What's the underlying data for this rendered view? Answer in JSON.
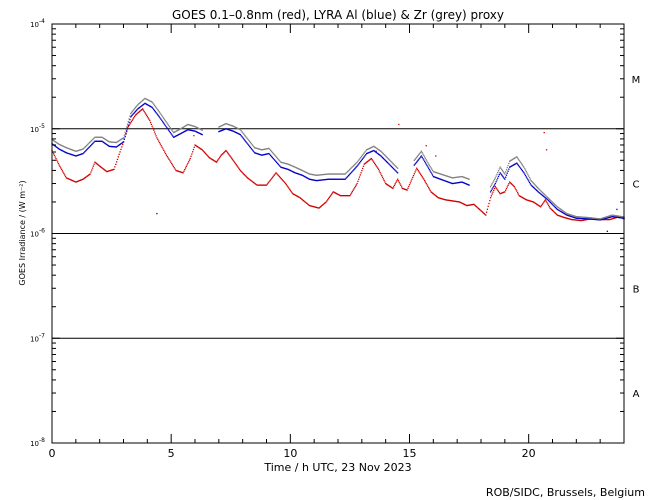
{
  "chart_data": {
    "type": "scatter",
    "title": "GOES 0.1–0.8nm (red), LYRA Al (blue) & Zr (grey) proxy",
    "xlabel": "Time / h UTC, 23 Nov 2023",
    "ylabel": "GOES Irradiance / (W m⁻²)",
    "xlim": [
      0,
      24
    ],
    "ylim": [
      1e-08,
      0.0001
    ],
    "yscale": "log",
    "x_ticks": [
      0,
      5,
      10,
      15,
      20
    ],
    "x_tick_labels": [
      "0",
      "5",
      "10",
      "15",
      "20"
    ],
    "y_ticks": [
      {
        "value": 1e-08,
        "base": "10",
        "exp": "-8"
      },
      {
        "value": 1e-07,
        "base": "10",
        "exp": "-7"
      },
      {
        "value": 1e-06,
        "base": "10",
        "exp": "-6"
      },
      {
        "value": 1e-05,
        "base": "10",
        "exp": "-5"
      },
      {
        "value": 0.0001,
        "base": "10",
        "exp": "-4"
      }
    ],
    "class_lines": [
      1e-07,
      1e-06,
      1e-05
    ],
    "class_labels": [
      {
        "label": "A",
        "value": 3e-08
      },
      {
        "label": "B",
        "value": 3e-07
      },
      {
        "label": "C",
        "value": 3e-06
      },
      {
        "label": "M",
        "value": 3e-05
      }
    ],
    "grid": false,
    "legend": "none",
    "series": [
      {
        "color": "#d00000",
        "x": [
          0.0,
          0.3,
          0.6,
          1.0,
          1.3,
          1.6,
          1.8,
          2.0,
          2.3,
          2.6,
          3.0,
          3.2,
          3.5,
          3.8,
          4.1,
          4.4,
          4.8,
          5.2,
          5.5,
          5.8,
          6.0,
          6.3,
          6.6,
          6.9,
          7.1,
          7.3,
          7.6,
          7.9,
          8.2,
          8.6,
          9.0,
          9.4,
          9.8,
          10.1,
          10.4,
          10.8,
          11.2,
          11.5,
          11.8,
          12.1,
          12.5,
          12.8,
          13.1,
          13.4,
          13.7,
          14.0,
          14.3,
          14.5,
          14.7,
          14.9,
          15.1,
          15.3,
          15.6,
          15.9,
          16.2,
          16.5,
          16.8,
          17.1,
          17.4,
          17.7,
          18.0,
          18.2,
          18.4,
          18.6,
          18.8,
          19.0,
          19.2,
          19.4,
          19.6,
          19.9,
          20.2,
          20.5,
          20.7,
          20.9,
          21.2,
          21.5,
          21.8,
          22.2,
          22.6,
          23.0,
          23.4,
          23.8,
          24.0
        ],
        "y": [
          6.2e-06,
          4.5e-06,
          3.4e-06,
          3.1e-06,
          3.3e-06,
          3.7e-06,
          4.8e-06,
          4.4e-06,
          3.9e-06,
          4.1e-06,
          7.5e-06,
          1.05e-05,
          1.35e-05,
          1.55e-05,
          1.2e-05,
          8.2e-06,
          5.6e-06,
          4e-06,
          3.8e-06,
          5.2e-06,
          7e-06,
          6.3e-06,
          5.3e-06,
          4.8e-06,
          5.6e-06,
          6.2e-06,
          5e-06,
          4e-06,
          3.4e-06,
          2.9e-06,
          2.9e-06,
          3.8e-06,
          3e-06,
          2.4e-06,
          2.2e-06,
          1.85e-06,
          1.75e-06,
          2e-06,
          2.5e-06,
          2.3e-06,
          2.3e-06,
          3e-06,
          4.6e-06,
          5.2e-06,
          4.1e-06,
          3e-06,
          2.7e-06,
          3.3e-06,
          2.7e-06,
          2.6e-06,
          3.3e-06,
          4.2e-06,
          3.3e-06,
          2.5e-06,
          2.2e-06,
          2.1e-06,
          2.05e-06,
          2e-06,
          1.85e-06,
          1.9e-06,
          1.65e-06,
          1.5e-06,
          2.2e-06,
          2.8e-06,
          2.4e-06,
          2.5e-06,
          3.1e-06,
          2.8e-06,
          2.3e-06,
          2.1e-06,
          2e-06,
          1.8e-06,
          2.1e-06,
          1.75e-06,
          1.5e-06,
          1.42e-06,
          1.36e-06,
          1.33e-06,
          1.38e-06,
          1.36e-06,
          1.36e-06,
          1.45e-06,
          1.38e-06
        ],
        "extra_points": [
          [
            14.55,
            1.1e-05
          ],
          [
            20.65,
            9.2e-06
          ],
          [
            20.75,
            6.3e-06
          ],
          [
            15.7,
            6.9e-06
          ],
          [
            16.1,
            5.5e-06
          ],
          [
            5.95,
            8.6e-06
          ],
          [
            13.6,
            6.1e-06
          ]
        ]
      },
      {
        "color": "#0000c8",
        "x": [
          0.0,
          0.3,
          0.6,
          1.0,
          1.3,
          1.8,
          2.1,
          2.4,
          2.7,
          3.0,
          3.3,
          3.6,
          3.9,
          4.2,
          4.5,
          5.1,
          5.4,
          5.7,
          6.0,
          6.3,
          7.0,
          7.3,
          7.6,
          7.9,
          8.5,
          8.8,
          9.1,
          9.6,
          9.9,
          10.2,
          10.5,
          10.8,
          11.1,
          11.6,
          11.9,
          12.3,
          12.8,
          13.2,
          13.5,
          13.8,
          14.1,
          14.5,
          15.2,
          15.5,
          15.8,
          16.0,
          16.3,
          16.8,
          17.2,
          17.5,
          18.4,
          18.6,
          18.8,
          19.0,
          19.2,
          19.5,
          19.8,
          20.1,
          20.4,
          20.8,
          21.2,
          21.6,
          22.0,
          22.5,
          23.0,
          23.5,
          24.0
        ],
        "y": [
          7.2e-06,
          6.4e-06,
          5.9e-06,
          5.5e-06,
          5.8e-06,
          7.6e-06,
          7.6e-06,
          6.8e-06,
          6.7e-06,
          7.5e-06,
          1.3e-05,
          1.55e-05,
          1.75e-05,
          1.6e-05,
          1.3e-05,
          8.3e-06,
          9e-06,
          9.8e-06,
          9.5e-06,
          8.8e-06,
          9.4e-06,
          1e-05,
          9.5e-06,
          8.8e-06,
          5.9e-06,
          5.6e-06,
          5.8e-06,
          4.3e-06,
          4.1e-06,
          3.8e-06,
          3.6e-06,
          3.3e-06,
          3.2e-06,
          3.3e-06,
          3.3e-06,
          3.3e-06,
          4.4e-06,
          5.8e-06,
          6.2e-06,
          5.5e-06,
          4.7e-06,
          3.8e-06,
          4.5e-06,
          5.5e-06,
          4.2e-06,
          3.5e-06,
          3.3e-06,
          3e-06,
          3.1e-06,
          2.9e-06,
          2.5e-06,
          3e-06,
          3.8e-06,
          3.3e-06,
          4.3e-06,
          4.7e-06,
          3.8e-06,
          2.9e-06,
          2.5e-06,
          2.1e-06,
          1.7e-06,
          1.5e-06,
          1.4e-06,
          1.38e-06,
          1.35e-06,
          1.45e-06,
          1.4e-06
        ],
        "extra_points": [
          [
            4.4,
            1.55e-06
          ],
          [
            23.3,
            1.05e-06
          ],
          [
            23.7,
            1.7e-06
          ]
        ]
      },
      {
        "color": "#808080",
        "x": [
          0.0,
          0.3,
          0.6,
          1.0,
          1.3,
          1.8,
          2.1,
          2.4,
          2.7,
          3.0,
          3.3,
          3.6,
          3.9,
          4.2,
          4.5,
          5.1,
          5.4,
          5.7,
          6.0,
          6.3,
          7.0,
          7.3,
          7.6,
          7.9,
          8.5,
          8.8,
          9.1,
          9.6,
          9.9,
          10.2,
          10.5,
          10.8,
          11.1,
          11.6,
          11.9,
          12.3,
          12.8,
          13.2,
          13.5,
          13.8,
          14.1,
          14.5,
          15.2,
          15.5,
          15.8,
          16.0,
          16.3,
          16.8,
          17.2,
          17.5,
          18.4,
          18.6,
          18.8,
          19.0,
          19.2,
          19.5,
          19.8,
          20.1,
          20.4,
          20.8,
          21.2,
          21.6,
          22.0,
          22.5,
          23.0,
          23.5,
          24.0
        ],
        "y": [
          7.9e-06,
          7.1e-06,
          6.6e-06,
          6.1e-06,
          6.4e-06,
          8.3e-06,
          8.3e-06,
          7.5e-06,
          7.4e-06,
          8.2e-06,
          1.4e-05,
          1.7e-05,
          1.95e-05,
          1.8e-05,
          1.45e-05,
          9.2e-06,
          1e-05,
          1.1e-05,
          1.05e-05,
          9.7e-06,
          1.04e-05,
          1.12e-05,
          1.06e-05,
          9.8e-06,
          6.6e-06,
          6.3e-06,
          6.5e-06,
          4.8e-06,
          4.6e-06,
          4.3e-06,
          4e-06,
          3.7e-06,
          3.6e-06,
          3.7e-06,
          3.7e-06,
          3.7e-06,
          4.8e-06,
          6.3e-06,
          6.8e-06,
          6.1e-06,
          5.2e-06,
          4.2e-06,
          5e-06,
          6.1e-06,
          4.6e-06,
          3.9e-06,
          3.7e-06,
          3.4e-06,
          3.5e-06,
          3.3e-06,
          2.8e-06,
          3.4e-06,
          4.3e-06,
          3.7e-06,
          4.9e-06,
          5.4e-06,
          4.3e-06,
          3.2e-06,
          2.7e-06,
          2.2e-06,
          1.8e-06,
          1.55e-06,
          1.45e-06,
          1.42e-06,
          1.38e-06,
          1.5e-06,
          1.44e-06
        ],
        "extra_points": []
      }
    ]
  },
  "footer": {
    "credit": "ROB/SIDC, Brussels, Belgium"
  }
}
